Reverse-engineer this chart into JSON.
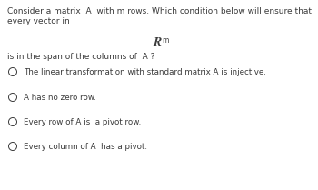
{
  "bg_color": "#ffffff",
  "text_color": "#3a3a3a",
  "title_line1": "Consider a matrix  A  with m rows. Which condition below will ensure that",
  "title_line2": "every vector in",
  "rm_label": "R",
  "rm_superscript": "m",
  "span_line": "is in the span of the columns of  A ?",
  "options": [
    "The linear transformation with standard matrix A is injective.",
    "A has no zero row.",
    "Every row of A is  a pivot row.",
    "Every column of A  has a pivot."
  ],
  "font_size_body": 6.5,
  "font_size_option": 6.3,
  "font_size_Rm": 10,
  "font_size_sup": 5.5,
  "circle_size": 5.5
}
